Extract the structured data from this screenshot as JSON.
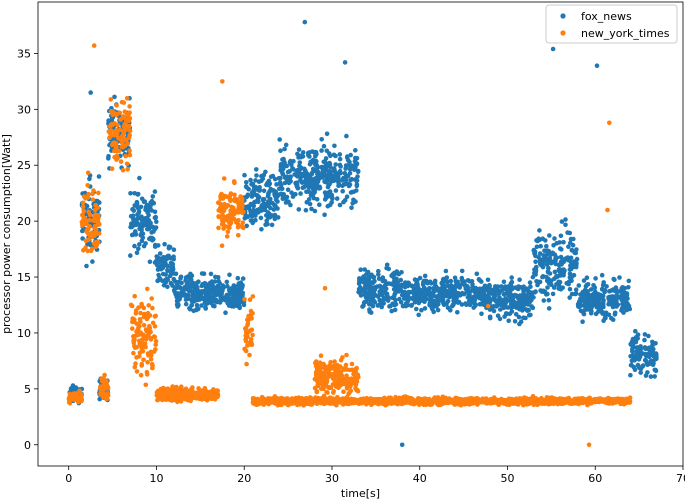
{
  "chart_data": {
    "type": "scatter",
    "title": "",
    "xlabel": "time[s]",
    "ylabel": "processor power consumption[Watt]",
    "xlim": [
      -3.5,
      70
    ],
    "ylim": [
      -1.9,
      39.6
    ],
    "x_ticks": [
      0,
      10,
      20,
      30,
      40,
      50,
      60,
      70
    ],
    "y_ticks": [
      0,
      5,
      10,
      15,
      20,
      25,
      30,
      35
    ],
    "grid": false,
    "legend_position": "top-right",
    "series": [
      {
        "name": "fox_news",
        "color": "#1f77b4",
        "segments": [
          {
            "x": [
              0,
              1.5
            ],
            "base": 4.5,
            "spread": 1.2
          },
          {
            "x": [
              1.5,
              3.5
            ],
            "base": 20,
            "spread": 6
          },
          {
            "x": [
              3.5,
              4.5
            ],
            "base": 5,
            "spread": 1.5
          },
          {
            "x": [
              4.5,
              7
            ],
            "base": 28,
            "spread": 5
          },
          {
            "x": [
              7,
              10
            ],
            "base": 20,
            "spread": 5
          },
          {
            "x": [
              10,
              12
            ],
            "base": 16,
            "spread": 3
          },
          {
            "x": [
              12,
              20
            ],
            "base": 13.5,
            "spread": 2.5
          },
          {
            "x": [
              20,
              24
            ],
            "base": 22,
            "spread": 4
          },
          {
            "x": [
              24,
              28
            ],
            "base": 24,
            "spread": 5
          },
          {
            "x": [
              28,
              33
            ],
            "base": 24,
            "spread": 4.5
          },
          {
            "x": [
              33,
              38
            ],
            "base": 14,
            "spread": 3
          },
          {
            "x": [
              38,
              48
            ],
            "base": 13.5,
            "spread": 2.5
          },
          {
            "x": [
              48,
              53
            ],
            "base": 13,
            "spread": 3
          },
          {
            "x": [
              53,
              58
            ],
            "base": 16,
            "spread": 5
          },
          {
            "x": [
              58,
              64
            ],
            "base": 13,
            "spread": 3
          },
          {
            "x": [
              64,
              67
            ],
            "base": 8,
            "spread": 3
          }
        ],
        "outliers": [
          {
            "x": 26.9,
            "y": 37.8
          },
          {
            "x": 55.2,
            "y": 35.4
          },
          {
            "x": 60.2,
            "y": 33.9
          },
          {
            "x": 38.0,
            "y": 0.0
          },
          {
            "x": 31.5,
            "y": 34.2
          },
          {
            "x": 2.5,
            "y": 31.5
          }
        ]
      },
      {
        "name": "new_york_times",
        "color": "#ff7f0e",
        "segments": [
          {
            "x": [
              0,
              1.5
            ],
            "base": 4.2,
            "spread": 0.8
          },
          {
            "x": [
              1.5,
              3.5
            ],
            "base": 20,
            "spread": 5
          },
          {
            "x": [
              3.5,
              4.5
            ],
            "base": 5,
            "spread": 2
          },
          {
            "x": [
              4.5,
              7
            ],
            "base": 28,
            "spread": 5
          },
          {
            "x": [
              7,
              10
            ],
            "base": 10,
            "spread": 6
          },
          {
            "x": [
              10,
              17
            ],
            "base": 4.5,
            "spread": 1
          },
          {
            "x": [
              17,
              20
            ],
            "base": 21,
            "spread": 4
          },
          {
            "x": [
              20,
              21
            ],
            "base": 10,
            "spread": 5
          },
          {
            "x": [
              21,
              64
            ],
            "base": 3.9,
            "spread": 0.5
          },
          {
            "x": [
              28,
              33
            ],
            "base": 6,
            "spread": 3
          }
        ],
        "outliers": [
          {
            "x": 2.9,
            "y": 35.7
          },
          {
            "x": 17.5,
            "y": 32.5
          },
          {
            "x": 59.3,
            "y": 0.0
          },
          {
            "x": 61.6,
            "y": 28.8
          },
          {
            "x": 61.4,
            "y": 21.0
          },
          {
            "x": 29.2,
            "y": 14.0
          },
          {
            "x": 47.8,
            "y": 12.4
          }
        ]
      }
    ]
  }
}
